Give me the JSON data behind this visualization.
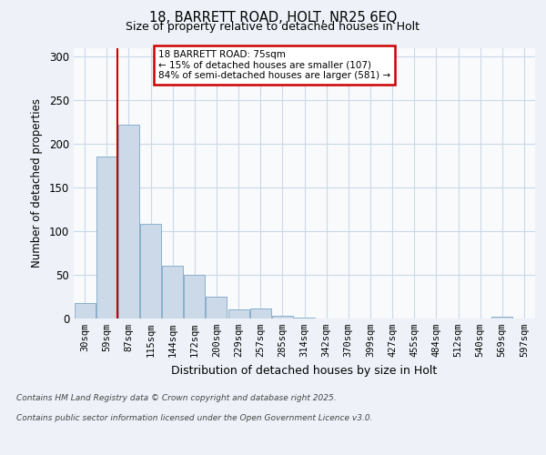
{
  "title_line1": "18, BARRETT ROAD, HOLT, NR25 6EQ",
  "title_line2": "Size of property relative to detached houses in Holt",
  "xlabel": "Distribution of detached houses by size in Holt",
  "ylabel": "Number of detached properties",
  "categories": [
    "30sqm",
    "59sqm",
    "87sqm",
    "115sqm",
    "144sqm",
    "172sqm",
    "200sqm",
    "229sqm",
    "257sqm",
    "285sqm",
    "314sqm",
    "342sqm",
    "370sqm",
    "399sqm",
    "427sqm",
    "455sqm",
    "484sqm",
    "512sqm",
    "540sqm",
    "569sqm",
    "597sqm"
  ],
  "values": [
    18,
    185,
    222,
    108,
    60,
    50,
    25,
    10,
    11,
    3,
    1,
    0,
    0,
    0,
    0,
    0,
    0,
    0,
    0,
    2,
    0
  ],
  "bar_color": "#ccd9e8",
  "bar_edge_color": "#8ab0cc",
  "property_label": "18 BARRETT ROAD: 75sqm",
  "annotation_line1": "← 15% of detached houses are smaller (107)",
  "annotation_line2": "84% of semi-detached houses are larger (581) →",
  "vline_color": "#cc0000",
  "vline_x_pos": 1.5,
  "ylim": [
    0,
    310
  ],
  "yticks": [
    0,
    50,
    100,
    150,
    200,
    250,
    300
  ],
  "footer_line1": "Contains HM Land Registry data © Crown copyright and database right 2025.",
  "footer_line2": "Contains public sector information licensed under the Open Government Licence v3.0.",
  "background_color": "#eef2f8",
  "plot_bg_color": "#f8fafc",
  "grid_color": "#ccd8e8",
  "annotation_box_color": "#ffffff",
  "annotation_box_edge": "#cc0000"
}
